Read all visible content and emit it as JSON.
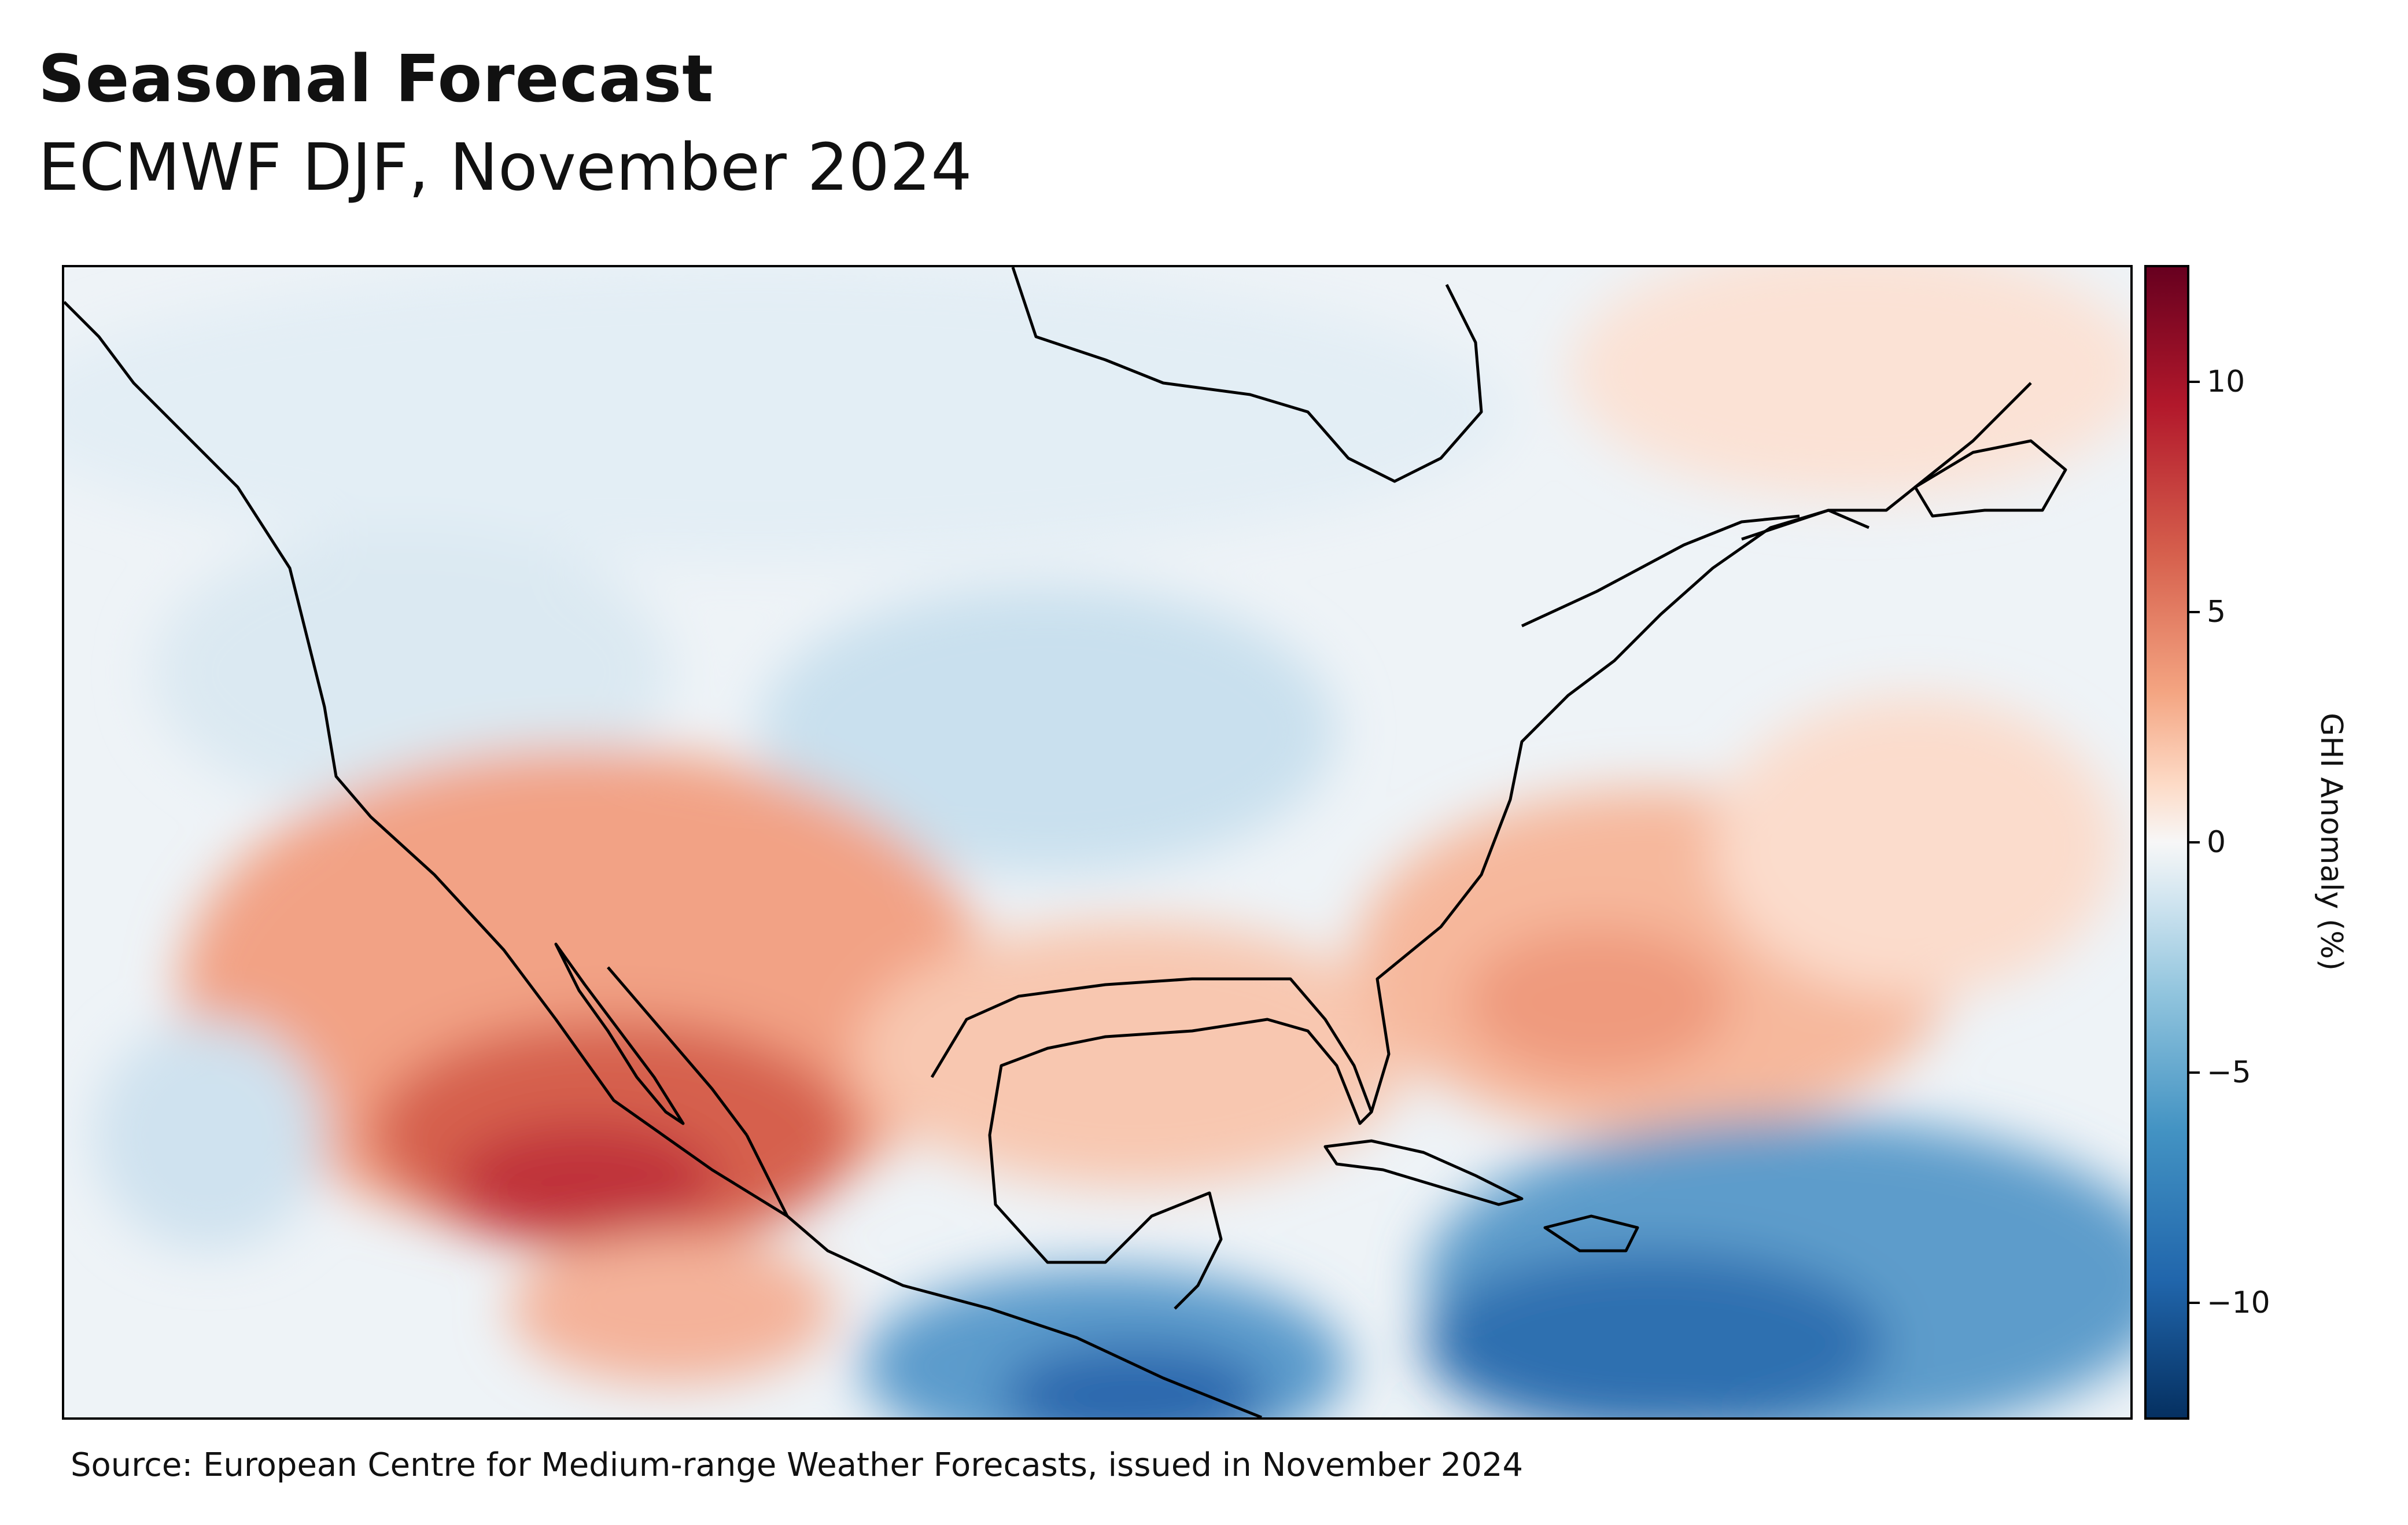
{
  "header": {
    "title": "Seasonal Forecast",
    "subtitle": "ECMWF DJF, November 2024"
  },
  "map": {
    "region": "North America, Central America, Caribbean",
    "variable": "GHI Anomaly",
    "anomaly_regions": [
      {
        "name": "Pacific off Baja / Mexico",
        "sign": "positive",
        "max_value": 10
      },
      {
        "name": "Gulf of Mexico",
        "sign": "positive",
        "max_value": 3
      },
      {
        "name": "Western Atlantic off US East Coast",
        "sign": "positive",
        "max_value": 5
      },
      {
        "name": "Caribbean Sea",
        "sign": "negative",
        "max_value": -10
      },
      {
        "name": "Central America Pacific coast",
        "sign": "negative",
        "max_value": -11
      },
      {
        "name": "Central US",
        "sign": "negative",
        "max_value": -3
      }
    ]
  },
  "colorbar": {
    "label": "GHI Anomaly (%)",
    "ticks": [
      "10",
      "5",
      "0",
      "−5",
      "−10"
    ],
    "range": [
      -12.5,
      12.5
    ],
    "colormap": "RdBu_r",
    "colors": {
      "max": "#67001f",
      "mid": "#f7f7f7",
      "min": "#053061"
    }
  },
  "footer": {
    "source": "Source: European Centre for Medium-range Weather Forecasts, issued in November 2024"
  }
}
